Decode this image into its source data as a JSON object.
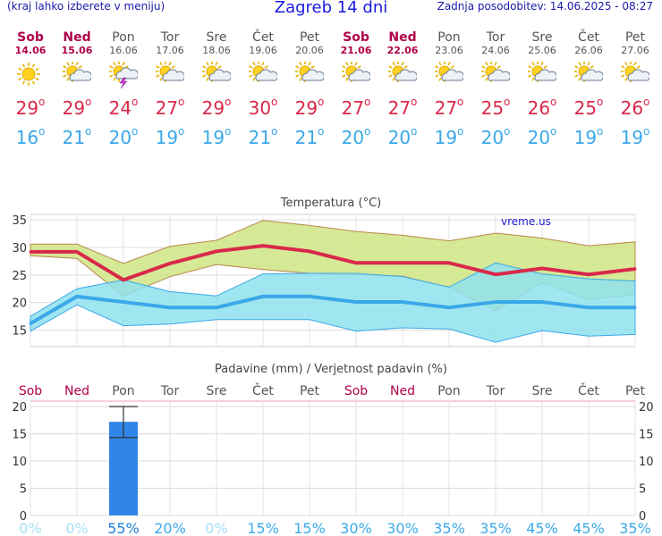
{
  "header": {
    "hint": "(kraj lahko izberete v meniju)",
    "title": "Zagreb 14 dni",
    "updated": "Zadnja posodobitev: 14.06.2025 - 08:27"
  },
  "days": [
    {
      "name": "Sob",
      "date": "14.06",
      "weekend": true,
      "icon": "sun-icon",
      "max": "29",
      "min": "16"
    },
    {
      "name": "Ned",
      "date": "15.06",
      "weekend": true,
      "icon": "sun-cloud-icon",
      "max": "29",
      "min": "21"
    },
    {
      "name": "Pon",
      "date": "16.06",
      "weekend": false,
      "icon": "thunderstorm-icon",
      "max": "24",
      "min": "20"
    },
    {
      "name": "Tor",
      "date": "17.06",
      "weekend": false,
      "icon": "sun-cloud-icon",
      "max": "27",
      "min": "19"
    },
    {
      "name": "Sre",
      "date": "18.06",
      "weekend": false,
      "icon": "sun-cloud-icon",
      "max": "29",
      "min": "19"
    },
    {
      "name": "Čet",
      "date": "19.06",
      "weekend": false,
      "icon": "sun-cloud-icon",
      "max": "30",
      "min": "21"
    },
    {
      "name": "Pet",
      "date": "20.06",
      "weekend": false,
      "icon": "sun-cloud-icon",
      "max": "29",
      "min": "21"
    },
    {
      "name": "Sob",
      "date": "21.06",
      "weekend": true,
      "icon": "sun-cloud-icon",
      "max": "27",
      "min": "20"
    },
    {
      "name": "Ned",
      "date": "22.06",
      "weekend": true,
      "icon": "sun-cloud-icon",
      "max": "27",
      "min": "20"
    },
    {
      "name": "Pon",
      "date": "23.06",
      "weekend": false,
      "icon": "sun-cloud-icon",
      "max": "27",
      "min": "19"
    },
    {
      "name": "Tor",
      "date": "24.06",
      "weekend": false,
      "icon": "sun-cloud-icon",
      "max": "25",
      "min": "20"
    },
    {
      "name": "Sre",
      "date": "25.06",
      "weekend": false,
      "icon": "sun-cloud-icon",
      "max": "26",
      "min": "20"
    },
    {
      "name": "Čet",
      "date": "26.06",
      "weekend": false,
      "icon": "sun-cloud-icon",
      "max": "25",
      "min": "19"
    },
    {
      "name": "Pet",
      "date": "27.06",
      "weekend": false,
      "icon": "sun-cloud-icon",
      "max": "26",
      "min": "19"
    }
  ],
  "colors": {
    "max": "#d9284a",
    "min": "#3aa8e8",
    "weekend": "#b0004a",
    "warm_band": "#cfe584",
    "cool_band": "#8fe2ee",
    "bar": "#2f86e6"
  },
  "chart_data": [
    {
      "type": "line",
      "title": "Temperatura (°C)",
      "watermark": "vreme.us",
      "ylim": [
        12,
        36
      ],
      "yticks": [
        15,
        20,
        25,
        30,
        35
      ],
      "grid": true,
      "x": [
        "14.06",
        "15.06",
        "16.06",
        "17.06",
        "18.06",
        "19.06",
        "20.06",
        "21.06",
        "22.06",
        "23.06",
        "24.06",
        "25.06",
        "26.06",
        "27.06"
      ],
      "series": [
        {
          "role": "max",
          "values": [
            29.2,
            29.2,
            24.1,
            27.1,
            29.3,
            30.3,
            29.3,
            27.2,
            27.2,
            27.2,
            25.1,
            26.2,
            25.1,
            26.1
          ]
        },
        {
          "role": "min",
          "values": [
            16.2,
            21.1,
            20.1,
            19.1,
            19.1,
            21.1,
            21.1,
            20.1,
            20.1,
            19.1,
            20.1,
            20.1,
            19.1,
            19.1
          ]
        },
        {
          "role": "max_upper",
          "values": [
            30.6,
            30.6,
            27.1,
            30.2,
            31.3,
            34.9,
            34.0,
            32.9,
            32.2,
            31.2,
            32.6,
            31.7,
            30.3,
            31.0
          ]
        },
        {
          "role": "max_lower",
          "values": [
            28.5,
            28.0,
            21.2,
            24.7,
            26.9,
            26.0,
            25.3,
            25.0,
            24.8,
            22.7,
            18.6,
            23.6,
            20.5,
            21.5
          ]
        },
        {
          "role": "min_upper",
          "values": [
            17.5,
            22.5,
            24.1,
            22.0,
            21.2,
            25.2,
            25.3,
            25.3,
            24.7,
            22.8,
            27.2,
            25.2,
            24.3,
            23.9
          ]
        },
        {
          "role": "min_lower",
          "values": [
            14.8,
            19.6,
            15.8,
            16.1,
            16.9,
            16.9,
            16.9,
            14.8,
            15.4,
            15.2,
            12.8,
            14.9,
            13.9,
            14.2
          ]
        }
      ]
    },
    {
      "type": "bar",
      "title": "Padavine (mm) / Verjetnost padavin (%)",
      "ylim": [
        0,
        21
      ],
      "yticks": [
        0,
        5,
        10,
        15,
        20
      ],
      "categories": [
        "Sob",
        "Ned",
        "Pon",
        "Tor",
        "Sre",
        "Čet",
        "Pet",
        "Sob",
        "Ned",
        "Pon",
        "Tor",
        "Sre",
        "Čet",
        "Pet"
      ],
      "weekend": [
        true,
        true,
        false,
        false,
        false,
        false,
        false,
        true,
        true,
        false,
        false,
        false,
        false,
        false
      ],
      "values": [
        0,
        0,
        17.2,
        0,
        0,
        0,
        0,
        0,
        0,
        0,
        0,
        0,
        0,
        0
      ],
      "error_low": [
        null,
        null,
        14.3,
        null,
        null,
        null,
        null,
        null,
        null,
        null,
        null,
        null,
        null,
        null
      ],
      "error_high": [
        null,
        null,
        20.0,
        null,
        null,
        null,
        null,
        null,
        null,
        null,
        null,
        null,
        null,
        null
      ],
      "probability": [
        "0%",
        "0%",
        "55%",
        "20%",
        "0%",
        "15%",
        "15%",
        "30%",
        "30%",
        "35%",
        "35%",
        "45%",
        "45%",
        "35%"
      ]
    }
  ]
}
